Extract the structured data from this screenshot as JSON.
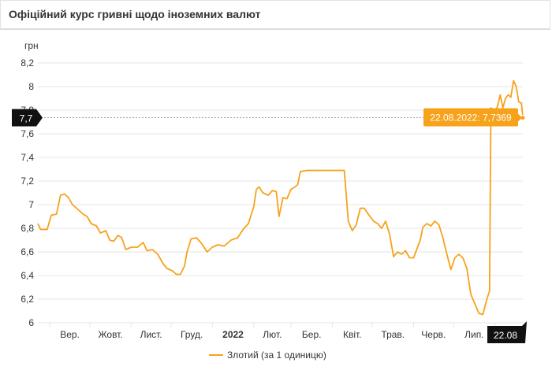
{
  "header": {
    "title": "Офіційний курс гривні щодо іноземних валют"
  },
  "colors": {
    "series": "#f7a21b",
    "grid": "#e6e6e6",
    "crosshair": "#999999",
    "badge": "#111111"
  },
  "chart_data": {
    "type": "line",
    "title": "",
    "ylabel": "грн",
    "ylim": [
      6,
      8.2
    ],
    "yticks": [
      "6",
      "6,2",
      "6,4",
      "6,6",
      "6,8",
      "7",
      "7,2",
      "7,4",
      "7,6",
      "7,8",
      "8",
      "8,2"
    ],
    "xtick_labels": [
      "Вер.",
      "Жовт.",
      "Лист.",
      "Груд.",
      "2022",
      "Лют.",
      "Бер.",
      "Квіт.",
      "Трав.",
      "Черв.",
      "Лип."
    ],
    "grid": true,
    "legend_position": "bottom-center",
    "series": [
      {
        "name": "Злотий (за 1 одиницю)",
        "color": "#f7a21b",
        "points": [
          [
            "2021-08-23",
            6.84
          ],
          [
            "2021-08-25",
            6.79
          ],
          [
            "2021-08-30",
            6.79
          ],
          [
            "2021-09-02",
            6.91
          ],
          [
            "2021-09-06",
            6.92
          ],
          [
            "2021-09-09",
            7.08
          ],
          [
            "2021-09-12",
            7.09
          ],
          [
            "2021-09-15",
            7.06
          ],
          [
            "2021-09-18",
            7.0
          ],
          [
            "2021-09-22",
            6.96
          ],
          [
            "2021-09-26",
            6.92
          ],
          [
            "2021-09-29",
            6.9
          ],
          [
            "2021-10-02",
            6.84
          ],
          [
            "2021-10-06",
            6.82
          ],
          [
            "2021-10-09",
            6.76
          ],
          [
            "2021-10-13",
            6.78
          ],
          [
            "2021-10-16",
            6.7
          ],
          [
            "2021-10-19",
            6.69
          ],
          [
            "2021-10-22",
            6.74
          ],
          [
            "2021-10-25",
            6.72
          ],
          [
            "2021-10-28",
            6.62
          ],
          [
            "2021-11-01",
            6.64
          ],
          [
            "2021-11-06",
            6.64
          ],
          [
            "2021-11-10",
            6.68
          ],
          [
            "2021-11-13",
            6.61
          ],
          [
            "2021-11-17",
            6.62
          ],
          [
            "2021-11-21",
            6.58
          ],
          [
            "2021-11-25",
            6.5
          ],
          [
            "2021-11-28",
            6.46
          ],
          [
            "2021-12-02",
            6.44
          ],
          [
            "2021-12-05",
            6.41
          ],
          [
            "2021-12-08",
            6.41
          ],
          [
            "2021-12-11",
            6.48
          ],
          [
            "2021-12-13",
            6.6
          ],
          [
            "2021-12-16",
            6.71
          ],
          [
            "2021-12-20",
            6.72
          ],
          [
            "2021-12-24",
            6.67
          ],
          [
            "2021-12-28",
            6.6
          ],
          [
            "2022-01-01",
            6.64
          ],
          [
            "2022-01-05",
            6.66
          ],
          [
            "2022-01-10",
            6.65
          ],
          [
            "2022-01-15",
            6.7
          ],
          [
            "2022-01-20",
            6.72
          ],
          [
            "2022-01-24",
            6.79
          ],
          [
            "2022-01-28",
            6.84
          ],
          [
            "2022-02-01",
            6.98
          ],
          [
            "2022-02-03",
            7.13
          ],
          [
            "2022-02-05",
            7.15
          ],
          [
            "2022-02-08",
            7.1
          ],
          [
            "2022-02-12",
            7.08
          ],
          [
            "2022-02-15",
            7.12
          ],
          [
            "2022-02-18",
            7.11
          ],
          [
            "2022-02-20",
            6.9
          ],
          [
            "2022-02-23",
            7.06
          ],
          [
            "2022-02-26",
            7.05
          ],
          [
            "2022-03-01",
            7.13
          ],
          [
            "2022-03-04",
            7.15
          ],
          [
            "2022-03-06",
            7.17
          ],
          [
            "2022-03-08",
            7.28
          ],
          [
            "2022-03-13",
            7.29
          ],
          [
            "2022-04-10",
            7.29
          ],
          [
            "2022-04-13",
            6.86
          ],
          [
            "2022-04-16",
            6.78
          ],
          [
            "2022-04-19",
            6.83
          ],
          [
            "2022-04-22",
            6.97
          ],
          [
            "2022-04-25",
            6.97
          ],
          [
            "2022-04-28",
            6.92
          ],
          [
            "2022-05-02",
            6.86
          ],
          [
            "2022-05-05",
            6.84
          ],
          [
            "2022-05-08",
            6.8
          ],
          [
            "2022-05-11",
            6.86
          ],
          [
            "2022-05-14",
            6.75
          ],
          [
            "2022-05-17",
            6.56
          ],
          [
            "2022-05-20",
            6.6
          ],
          [
            "2022-05-23",
            6.58
          ],
          [
            "2022-05-26",
            6.61
          ],
          [
            "2022-05-29",
            6.55
          ],
          [
            "2022-06-01",
            6.55
          ],
          [
            "2022-06-04",
            6.64
          ],
          [
            "2022-06-06",
            6.7
          ],
          [
            "2022-06-08",
            6.81
          ],
          [
            "2022-06-11",
            6.84
          ],
          [
            "2022-06-14",
            6.82
          ],
          [
            "2022-06-17",
            6.86
          ],
          [
            "2022-06-20",
            6.83
          ],
          [
            "2022-06-23",
            6.72
          ],
          [
            "2022-06-26",
            6.58
          ],
          [
            "2022-06-29",
            6.45
          ],
          [
            "2022-07-02",
            6.55
          ],
          [
            "2022-07-05",
            6.58
          ],
          [
            "2022-07-08",
            6.55
          ],
          [
            "2022-07-11",
            6.46
          ],
          [
            "2022-07-14",
            6.24
          ],
          [
            "2022-07-17",
            6.16
          ],
          [
            "2022-07-20",
            6.08
          ],
          [
            "2022-07-23",
            6.07
          ],
          [
            "2022-07-26",
            6.2
          ],
          [
            "2022-07-28",
            6.27
          ],
          [
            "2022-07-29",
            7.82
          ],
          [
            "2022-08-01",
            7.8
          ],
          [
            "2022-08-03",
            7.83
          ],
          [
            "2022-08-05",
            7.93
          ],
          [
            "2022-08-07",
            7.82
          ],
          [
            "2022-08-09",
            7.9
          ],
          [
            "2022-08-11",
            7.93
          ],
          [
            "2022-08-13",
            7.91
          ],
          [
            "2022-08-15",
            8.05
          ],
          [
            "2022-08-17",
            8.0
          ],
          [
            "2022-08-19",
            7.87
          ],
          [
            "2022-08-21",
            7.86
          ],
          [
            "2022-08-22",
            7.7369
          ]
        ]
      }
    ],
    "crosshair": {
      "y_label": "7,7",
      "x_label": "22.08",
      "tooltip": "22.08.2022: 7,7369"
    }
  }
}
